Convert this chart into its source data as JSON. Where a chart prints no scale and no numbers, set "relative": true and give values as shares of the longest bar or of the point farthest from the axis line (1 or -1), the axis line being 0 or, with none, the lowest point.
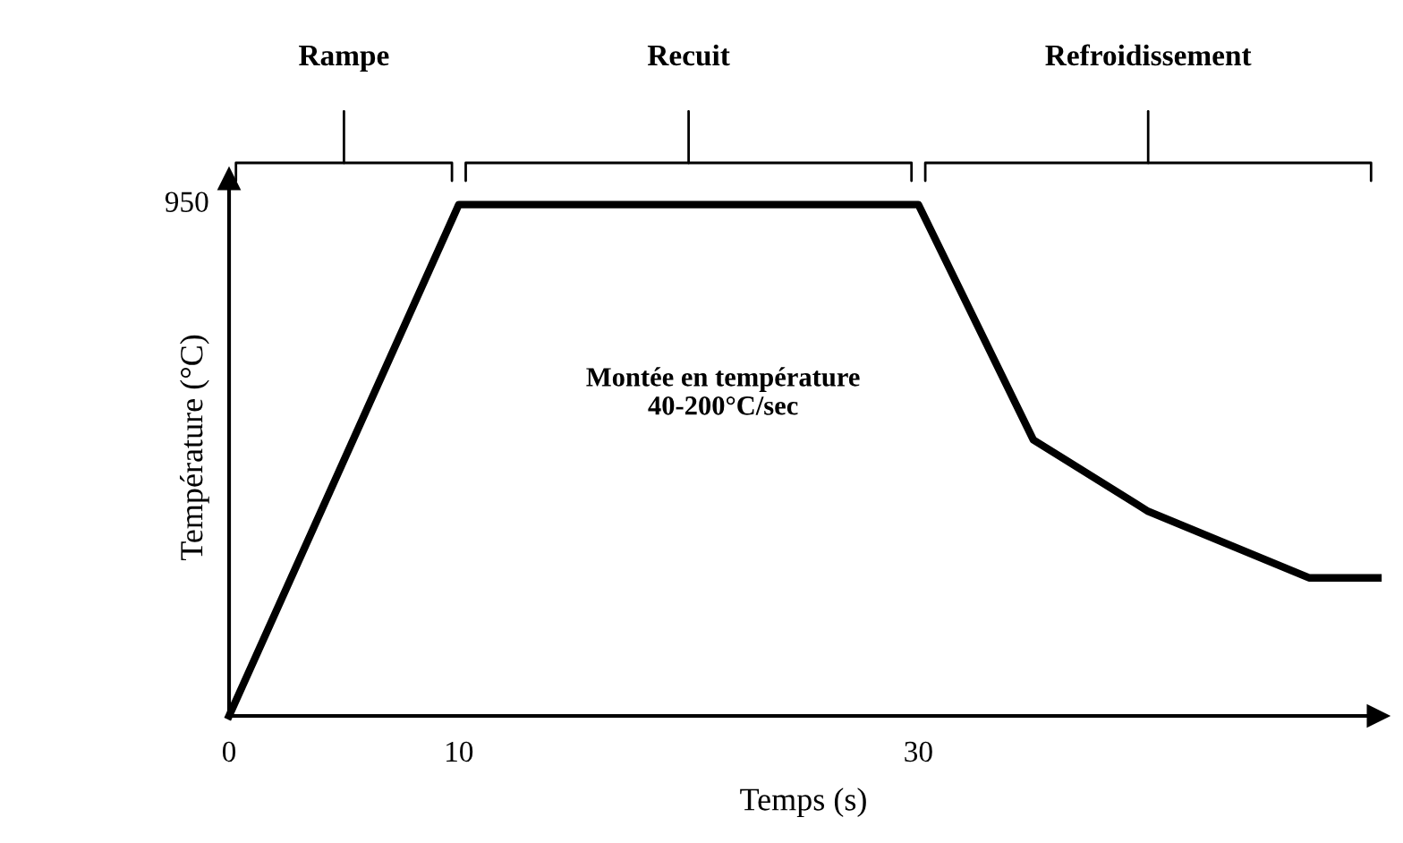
{
  "chart_data": {
    "type": "line",
    "xlabel": "Temps (s)",
    "ylabel": "Température (°C)",
    "x": [
      0,
      10,
      30,
      35,
      40,
      47,
      50
    ],
    "series": [
      {
        "color": "#000000",
        "values": [
          0,
          1,
          1,
          0.54,
          0.4,
          0.27,
          0.27
        ]
      }
    ],
    "relative": true,
    "xlim": [
      0,
      50
    ],
    "xticks": [
      0,
      10,
      30
    ],
    "annotations": [
      "950",
      "Rampe",
      "Recuit",
      "Refroidissement",
      "Montée en température\n40-200°C/sec"
    ],
    "grid": false,
    "legend": false,
    "marker": "none",
    "line_style": "solid"
  }
}
